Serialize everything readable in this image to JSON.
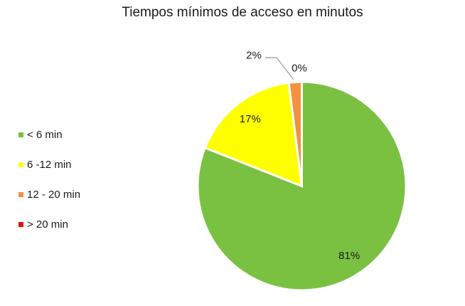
{
  "title": "Tiempos mínimos de acceso en minutos",
  "chart_data": {
    "type": "pie",
    "title": "Tiempos mínimos de acceso en minutos",
    "categories": [
      "< 6 min",
      "6 -12 min",
      "12 - 20 min",
      "> 20 min"
    ],
    "values": [
      81,
      17,
      2,
      0
    ],
    "labels": [
      "81%",
      "17%",
      "2%",
      "0%"
    ],
    "colors": [
      "#7AC142",
      "#FFFF00",
      "#F4913E",
      "#E50E0E"
    ],
    "leader_line_color": "#A6A6A6",
    "slice_border_color": "#FFFFFF",
    "legend_position": "left",
    "start_angle_deg": 0,
    "direction": "clockwise"
  }
}
